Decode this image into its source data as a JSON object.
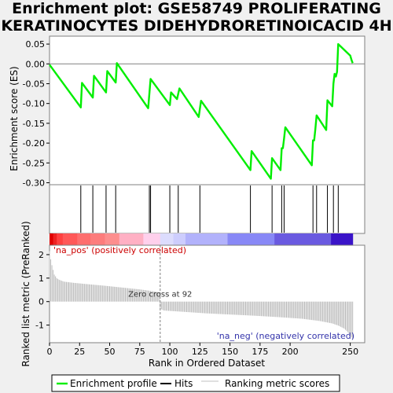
{
  "title_lines": [
    "Enrichment plot: GSE58749 PROLIFERATING",
    "KERATINOCYTES DIDEHYDRORETINOICACID 4H"
  ],
  "chart_data": {
    "type": "line",
    "title": "Enrichment plot: GSE58749 PROLIFERATING KERATINOCYTES DIDEHYDRORETINOICACID 4H",
    "xlabel": "Rank in Ordered Dataset",
    "xlim": [
      0,
      262
    ],
    "x_ticks": [
      0,
      25,
      50,
      75,
      100,
      125,
      150,
      175,
      200,
      250
    ],
    "es_panel": {
      "ylabel": "Enrichment score (ES)",
      "ylim": [
        -0.305,
        0.07
      ],
      "y_ticks": [
        0.05,
        0.0,
        -0.05,
        -0.1,
        -0.15,
        -0.2,
        -0.25,
        -0.3
      ],
      "y_tick_labels": [
        "0.05",
        "0.00",
        "-0.05",
        "-0.10",
        "-0.15",
        "-0.20",
        "-0.25",
        "-0.30"
      ],
      "series": [
        {
          "name": "Enrichment profile",
          "color": "#00ee00",
          "x": [
            0,
            26,
            27,
            36,
            37,
            47,
            48,
            55,
            56,
            82,
            84,
            100,
            101,
            106,
            108,
            124,
            126,
            167,
            168,
            184,
            185,
            192,
            193,
            194,
            195,
            196,
            218,
            219,
            220,
            221,
            222,
            230,
            231,
            235,
            236,
            237,
            238,
            239,
            240,
            250,
            251,
            252
          ],
          "values": [
            -0.002,
            -0.11,
            -0.048,
            -0.085,
            -0.03,
            -0.072,
            -0.018,
            -0.047,
            0.002,
            -0.112,
            -0.038,
            -0.104,
            -0.072,
            -0.089,
            -0.062,
            -0.134,
            -0.093,
            -0.268,
            -0.22,
            -0.29,
            -0.238,
            -0.268,
            -0.213,
            -0.213,
            -0.187,
            -0.16,
            -0.256,
            -0.193,
            -0.193,
            -0.165,
            -0.13,
            -0.167,
            -0.092,
            -0.107,
            -0.05,
            -0.025,
            -0.032,
            -0.02,
            0.05,
            0.021,
            0.01,
            0.002
          ]
        }
      ]
    },
    "hits": {
      "name": "Hits",
      "x": [
        26,
        36,
        47,
        55,
        83,
        84,
        100,
        107,
        125,
        167,
        185,
        193,
        195,
        219,
        222,
        231,
        236,
        240
      ]
    },
    "ranking_panel": {
      "ylabel": "Ranked list metric (PreRanked)",
      "ylim": [
        -1.75,
        2.4
      ],
      "y_ticks": [
        2,
        1,
        0,
        -1
      ],
      "y_tick_labels": [
        "2",
        "1",
        "0",
        "-1"
      ],
      "series_name": "Ranking metric scores",
      "knots_x": [
        0,
        1,
        2,
        4,
        6,
        8,
        12,
        20,
        30,
        45,
        60,
        75,
        85,
        91,
        92,
        95,
        110,
        130,
        150,
        170,
        190,
        210,
        225,
        235,
        240,
        245,
        248,
        250,
        252
      ],
      "knots_y": [
        2.15,
        1.8,
        1.55,
        1.15,
        1.0,
        0.93,
        0.85,
        0.8,
        0.75,
        0.68,
        0.6,
        0.52,
        0.45,
        0.4,
        -0.3,
        -0.38,
        -0.43,
        -0.5,
        -0.55,
        -0.6,
        -0.66,
        -0.73,
        -0.83,
        -0.93,
        -1.02,
        -1.15,
        -1.3,
        -1.45,
        -1.6
      ],
      "zero_cross_label": "Zero cross at 92",
      "zero_cross_x": 92,
      "pos_label": "'na_pos' (positively correlated)",
      "neg_label": "'na_neg' (negatively correlated)"
    },
    "color_bar": {
      "boundaries": [
        0,
        3,
        6,
        11,
        23,
        34,
        46,
        58,
        78,
        92,
        103,
        113,
        148,
        187,
        234,
        252
      ],
      "colors": [
        "#e00000",
        "#ee2222",
        "#ff4040",
        "#ff5858",
        "#fe6e6e",
        "#fd7c7c",
        "#fd8e8e",
        "#ffb0c4",
        "#ffd0ec",
        "#dcdcfd",
        "#cdcdfd",
        "#b2b2fb",
        "#8888f6",
        "#6a5ae0",
        "#3a14c8"
      ]
    },
    "legend": {
      "placement": "bottom",
      "items": [
        {
          "label": "Enrichment profile",
          "color": "#00ee00"
        },
        {
          "label": "Hits",
          "color": "#000000"
        },
        {
          "label": "Ranking metric scores",
          "color": "#c0c0c0"
        }
      ]
    }
  }
}
